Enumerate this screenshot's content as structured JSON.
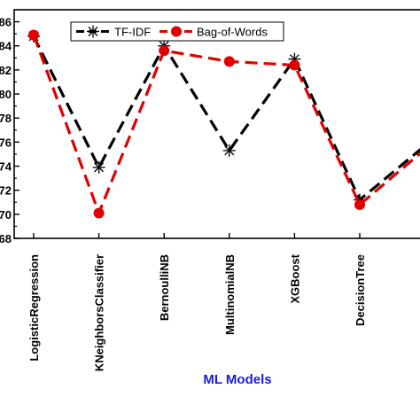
{
  "chart_data": {
    "type": "line",
    "title": "",
    "xlabel": "ML Models",
    "ylabel": "",
    "categories": [
      "LogisticRegression",
      "KNeighborsClassifier",
      "BernoulliNB",
      "MultinomialNB",
      "XGBoost",
      "DecisionTree",
      ""
    ],
    "series": [
      {
        "name": "TF-IDF",
        "values": [
          84.8,
          73.9,
          84.0,
          75.3,
          82.9,
          71.2,
          75.7
        ],
        "color": "#000000",
        "marker": "asterisk",
        "dash": "dashed"
      },
      {
        "name": "Bag-of-Words",
        "values": [
          84.9,
          70.1,
          83.6,
          82.7,
          82.4,
          70.8,
          75.4
        ],
        "color": "#e00000",
        "marker": "circle",
        "dash": "dashed"
      }
    ],
    "y_ticks": [
      "68",
      "70",
      "72",
      "74",
      "76",
      "78",
      "80",
      "82",
      "84",
      "86"
    ],
    "ylim": [
      68,
      87
    ],
    "grid": false,
    "legend_position": "top-center"
  }
}
